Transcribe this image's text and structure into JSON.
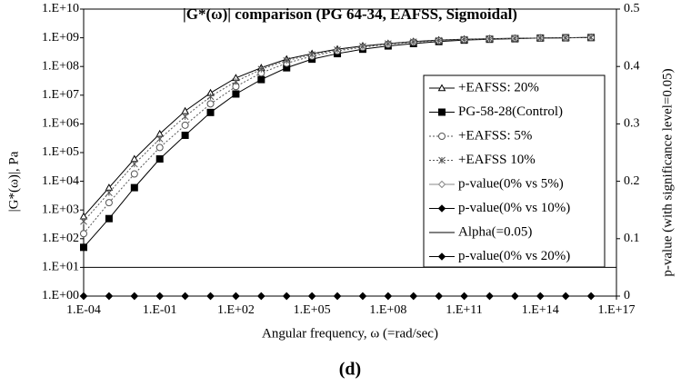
{
  "chart_data": {
    "type": "line",
    "title": "|G*(ω)| comparison (PG 64-34, EAFSS, Sigmoidal)",
    "xlabel": "Angular frequency, ω (=rad/sec)",
    "ylabel": "|G*(ω)|, Pa",
    "y2label": "p-value (with significance level=0.05)",
    "caption": "(d)",
    "xscale": "log",
    "yscale": "log",
    "x": [
      0.0001,
      0.001,
      0.01,
      0.1,
      1,
      10,
      100,
      1000,
      10000,
      100000,
      1000000,
      10000000,
      100000000,
      1000000000,
      10000000000,
      100000000000,
      1000000000000,
      10000000000000,
      100000000000000,
      1000000000000000,
      10000000000000000
    ],
    "xlim": [
      0.0001,
      100000000000000000
    ],
    "xticks": [
      {
        "value": 0.0001,
        "label": "1.E-04"
      },
      {
        "value": 0.1,
        "label": "1.E-01"
      },
      {
        "value": 100,
        "label": "1.E+02"
      },
      {
        "value": 100000,
        "label": "1.E+05"
      },
      {
        "value": 100000000,
        "label": "1.E+08"
      },
      {
        "value": 100000000000,
        "label": "1.E+11"
      },
      {
        "value": 100000000000000,
        "label": "1.E+14"
      },
      {
        "value": 100000000000000000,
        "label": "1.E+17"
      }
    ],
    "ylim": [
      1,
      10000000000
    ],
    "yticks": [
      {
        "value": 1,
        "label": "1.E+00"
      },
      {
        "value": 10,
        "label": "1.E+01"
      },
      {
        "value": 100,
        "label": "1.E+02"
      },
      {
        "value": 1000,
        "label": "1.E+03"
      },
      {
        "value": 10000,
        "label": "1.E+04"
      },
      {
        "value": 100000,
        "label": "1.E+05"
      },
      {
        "value": 1000000,
        "label": "1.E+06"
      },
      {
        "value": 10000000,
        "label": "1.E+07"
      },
      {
        "value": 100000000,
        "label": "1.E+08"
      },
      {
        "value": 1000000000,
        "label": "1.E+09"
      },
      {
        "value": 10000000000,
        "label": "1.E+10"
      }
    ],
    "y2lim": [
      0,
      0.5
    ],
    "y2ticks": [
      0,
      0.1,
      0.2,
      0.3,
      0.4,
      0.5
    ],
    "series": [
      {
        "name": "+EAFSS: 20%",
        "color": "#000000",
        "marker": "triangle-open",
        "dash": "solid",
        "values": [
          600,
          6000,
          60000,
          450000,
          2800000,
          12000000,
          40000000,
          90000000,
          180000000,
          280000000,
          400000000,
          520000000,
          630000000,
          740000000,
          830000000,
          890000000,
          930000000,
          960000000,
          980000000,
          1000000000,
          1030000000
        ]
      },
      {
        "name": "PG-58-28(Control)",
        "color": "#000000",
        "marker": "square",
        "dash": "solid",
        "values": [
          50,
          500,
          6000,
          60000,
          400000,
          2500000,
          11000000,
          35000000,
          90000000,
          180000000,
          280000000,
          400000000,
          520000000,
          630000000,
          740000000,
          830000000,
          890000000,
          930000000,
          980000000,
          1000000000,
          1020000000
        ]
      },
      {
        "name": "+EAFSS: 5%",
        "color": "#555555",
        "marker": "circle-open",
        "dash": "dotted",
        "values": [
          150,
          1800,
          18000,
          150000,
          900000,
          5000000,
          20000000,
          60000000,
          130000000,
          230000000,
          350000000,
          470000000,
          590000000,
          700000000,
          790000000,
          860000000,
          910000000,
          950000000,
          980000000,
          1000000000,
          1020000000
        ]
      },
      {
        "name": "+EAFSS 10%",
        "color": "#555555",
        "marker": "asterisk",
        "dash": "dotted",
        "values": [
          400,
          4000,
          40000,
          300000,
          1800000,
          9000000,
          30000000,
          80000000,
          160000000,
          260000000,
          380000000,
          500000000,
          620000000,
          720000000,
          810000000,
          880000000,
          920000000,
          950000000,
          980000000,
          1000000000,
          1020000000
        ]
      },
      {
        "name": "p-value(0% vs 5%)",
        "color": "#888888",
        "marker": "diamond-open",
        "dash": "solid",
        "axis": "y2",
        "values": [
          0,
          0,
          0,
          0,
          0,
          0,
          0,
          0,
          0,
          0,
          0,
          0,
          0,
          0,
          0,
          0,
          0,
          0,
          0,
          0,
          0
        ]
      },
      {
        "name": "p-value(0% vs 10%)",
        "color": "#000000",
        "marker": "diamond",
        "dash": "solid",
        "axis": "y2",
        "values": [
          0,
          0,
          0,
          0,
          0,
          0,
          0,
          0,
          0,
          0,
          0,
          0,
          0,
          0,
          0,
          0,
          0,
          0,
          0,
          0,
          0
        ]
      },
      {
        "name": "Alpha(=0.05)",
        "color": "#000000",
        "marker": "none",
        "dash": "solid",
        "axis": "y2",
        "x": [
          0.0001,
          100000000000000000
        ],
        "values": [
          0.05,
          0.05
        ]
      },
      {
        "name": "p-value(0% vs 20%)",
        "color": "#000000",
        "marker": "diamond",
        "dash": "solid",
        "axis": "y2",
        "values": [
          0,
          0,
          0,
          0,
          0,
          0,
          0,
          0,
          0,
          0,
          0,
          0,
          0,
          0,
          0,
          0,
          0,
          0,
          0,
          0,
          0
        ]
      }
    ]
  }
}
